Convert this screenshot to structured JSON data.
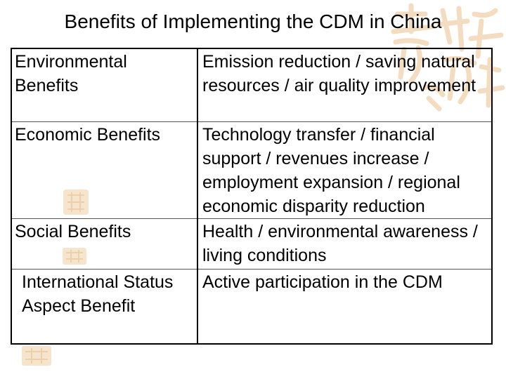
{
  "title": "Benefits of Implementing the CDM in China",
  "table": {
    "rows": [
      {
        "category": "Environmental Benefits",
        "description": "Emission reduction / saving natural resources / air quality improvement"
      },
      {
        "category": "Economic Benefits",
        "description": "Technology transfer / financial support / revenues increase / employment expansion / regional economic disparity reduction"
      },
      {
        "category": "Social Benefits",
        "description": "Health / environmental awareness / living conditions"
      },
      {
        "category": "International Status Aspect Benefit",
        "description": "Active participation in the CDM"
      }
    ]
  },
  "colors": {
    "text": "#000000",
    "background": "#ffffff",
    "watermark": "#f3dcc0"
  }
}
